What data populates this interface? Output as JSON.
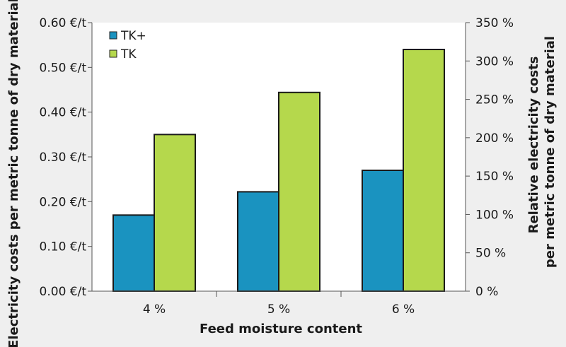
{
  "chart_data": {
    "type": "bar",
    "categories": [
      "4 %",
      "5 %",
      "6 %"
    ],
    "series": [
      {
        "name": "TK+",
        "values": [
          0.17,
          0.222,
          0.27
        ],
        "color": "#1a93c0"
      },
      {
        "name": "TK",
        "values": [
          0.35,
          0.444,
          0.54
        ],
        "color": "#b5d84c"
      }
    ],
    "xlabel": "Feed moisture content",
    "ylabel": "Electricity costs per metric tonne of dry material",
    "y2label_line1": "Relative electricity costs",
    "y2label_line2": "per metric tonne of dry material",
    "ylim": [
      0,
      0.6
    ],
    "y2lim": [
      0,
      350
    ],
    "yticks": [
      "0.00 €/t",
      "0.10 €/t",
      "0.20 €/t",
      "0.30 €/t",
      "0.40 €/t",
      "0.50 €/t",
      "0.60 €/t"
    ],
    "y2ticks": [
      "0 %",
      "50 %",
      "100 %",
      "150 %",
      "200 %",
      "250 %",
      "300 %",
      "350 %"
    ],
    "legend_position": "top-left",
    "grid": false,
    "background_color": "#efefef",
    "plot_background_color": "#ffffff"
  }
}
